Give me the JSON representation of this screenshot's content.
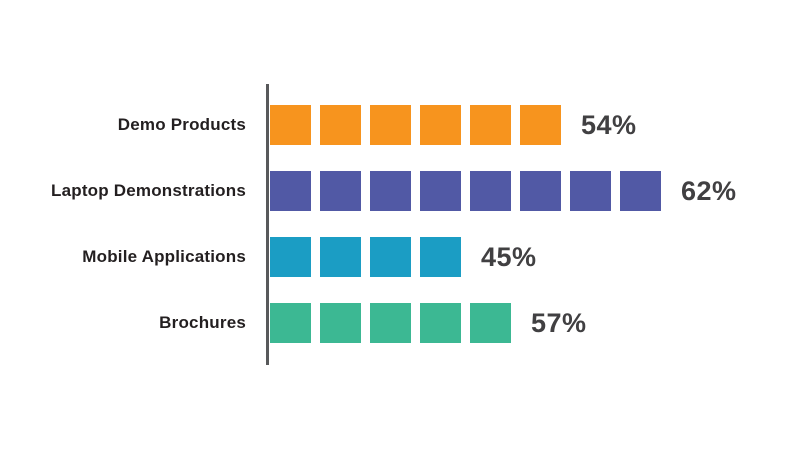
{
  "chart_data": {
    "type": "bar",
    "orientation": "horizontal",
    "style": "segmented-squares",
    "title": "",
    "xlabel": "",
    "ylabel": "",
    "grid": false,
    "legend": false,
    "categories": [
      "Demo Products",
      "Laptop Demonstrations",
      "Mobile Applications",
      "Brochures"
    ],
    "values": [
      54,
      62,
      45,
      57
    ],
    "value_labels": [
      "54%",
      "62%",
      "45%",
      "57%"
    ],
    "segment_counts": [
      6,
      8,
      4,
      5
    ],
    "bar_colors": [
      "#F7941E",
      "#5159A5",
      "#1B9DC4",
      "#3CB893"
    ],
    "axis_line_color": "#58595B",
    "category_label_color": "#231F20",
    "value_label_color": "#414042",
    "background_color": "#FFFFFF"
  }
}
